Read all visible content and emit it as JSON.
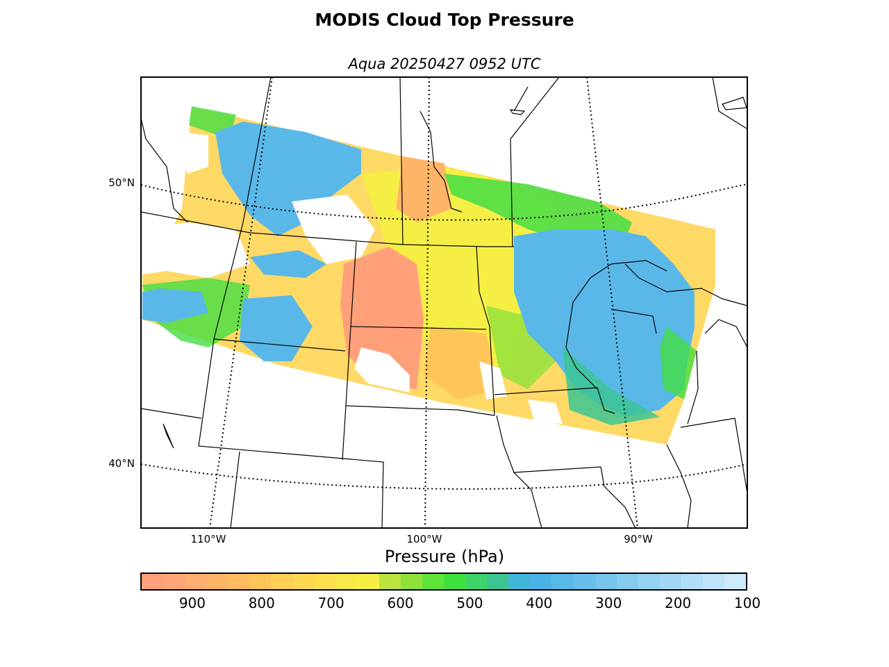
{
  "title": "MODIS Cloud Top Pressure",
  "subtitle": "Aqua 20250427 0952 UTC",
  "map": {
    "latitude_labels": [
      "50°N",
      "40°N"
    ],
    "longitude_labels": [
      "110°W",
      "100°W",
      "90°W"
    ],
    "region": "Northern Great Plains / Upper Midwest, US and southern Canada",
    "swath_colors": {
      "low_cloud": "#FFA07A",
      "mid_low": "#FFD966",
      "mid": "#F5EF45",
      "mid_high": "#44DD44",
      "high": "#5AB8E8",
      "no_data": "#FFFFFF"
    }
  },
  "colorbar": {
    "label": "Pressure (hPa)",
    "ticks": [
      "900",
      "800",
      "700",
      "600",
      "500",
      "400",
      "300",
      "200",
      "100"
    ],
    "range": [
      975,
      100
    ],
    "colors": [
      "#FFA07A",
      "#FFA577",
      "#FFAD70",
      "#FFB567",
      "#FFBD60",
      "#FFC559",
      "#FFCE55",
      "#FFD751",
      "#FDE04C",
      "#F9E948",
      "#F5EF45",
      "#BDE23E",
      "#8FE239",
      "#5FE43A",
      "#3EE23F",
      "#3ED46A",
      "#3CC493",
      "#42B6D8",
      "#4AB3E6",
      "#58B8E9",
      "#67BEEB",
      "#75C4EC",
      "#84CBEE",
      "#93D2F1",
      "#A2D8F4",
      "#B1DEF7",
      "#C0E4F9",
      "#CFEAFB"
    ]
  }
}
